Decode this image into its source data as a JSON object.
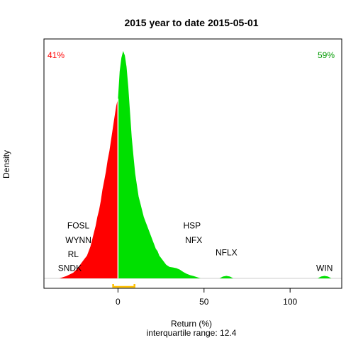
{
  "chart_data": {
    "type": "area",
    "title": "2015  year to date 2015-05-01",
    "xlabel": "Return (%)",
    "ylabel": "Density",
    "subtitle": "interquartile range: 12.4",
    "xlim": [
      -43,
      130
    ],
    "ylim": [
      0,
      1
    ],
    "x_ticks": [
      0,
      50,
      100
    ],
    "x_tick_labels": [
      "0",
      "50",
      "100"
    ],
    "pct_negative": "41%",
    "pct_positive": "59%",
    "colors": {
      "negative": "#ff0000",
      "positive": "#00e000",
      "iqr": "#ffc000",
      "text_negative": "#ff0000",
      "text_positive": "#009a00"
    },
    "interquartile_range": 12.4,
    "iqr_bounds": [
      -2.8,
      9.6
    ],
    "density": [
      [
        -34,
        0.0
      ],
      [
        -30,
        0.01
      ],
      [
        -26,
        0.025
      ],
      [
        -24,
        0.04
      ],
      [
        -22,
        0.06
      ],
      [
        -20,
        0.08
      ],
      [
        -18,
        0.1
      ],
      [
        -17,
        0.12
      ],
      [
        -16,
        0.14
      ],
      [
        -15,
        0.17
      ],
      [
        -14,
        0.2
      ],
      [
        -13,
        0.23
      ],
      [
        -12,
        0.27
      ],
      [
        -11,
        0.3
      ],
      [
        -10,
        0.34
      ],
      [
        -9,
        0.39
      ],
      [
        -8,
        0.43
      ],
      [
        -7,
        0.47
      ],
      [
        -6,
        0.52
      ],
      [
        -5,
        0.56
      ],
      [
        -4,
        0.61
      ],
      [
        -3,
        0.66
      ],
      [
        -2,
        0.71
      ],
      [
        -1,
        0.76
      ],
      [
        0,
        0.79
      ],
      [
        1,
        0.91
      ],
      [
        2,
        0.97
      ],
      [
        3,
        1.0
      ],
      [
        4,
        0.98
      ],
      [
        5,
        0.93
      ],
      [
        6,
        0.84
      ],
      [
        7,
        0.73
      ],
      [
        8,
        0.62
      ],
      [
        9,
        0.54
      ],
      [
        10,
        0.46
      ],
      [
        11,
        0.41
      ],
      [
        12,
        0.36
      ],
      [
        13,
        0.33
      ],
      [
        14,
        0.3
      ],
      [
        15,
        0.27
      ],
      [
        16,
        0.25
      ],
      [
        17,
        0.23
      ],
      [
        18,
        0.21
      ],
      [
        19,
        0.19
      ],
      [
        20,
        0.17
      ],
      [
        21,
        0.15
      ],
      [
        22,
        0.13
      ],
      [
        23,
        0.12
      ],
      [
        24,
        0.1
      ],
      [
        26,
        0.08
      ],
      [
        28,
        0.06
      ],
      [
        30,
        0.05
      ],
      [
        32,
        0.048
      ],
      [
        34,
        0.045
      ],
      [
        36,
        0.038
      ],
      [
        38,
        0.028
      ],
      [
        40,
        0.02
      ],
      [
        42,
        0.014
      ],
      [
        44,
        0.01
      ],
      [
        46,
        0.005
      ],
      [
        48,
        0.0
      ],
      [
        59,
        0.0
      ],
      [
        61,
        0.008
      ],
      [
        63,
        0.011
      ],
      [
        65,
        0.008
      ],
      [
        67,
        0.0
      ],
      [
        116,
        0.0
      ],
      [
        118,
        0.008
      ],
      [
        120,
        0.011
      ],
      [
        122,
        0.008
      ],
      [
        124,
        0.0
      ]
    ],
    "annotations": [
      {
        "text": "FOSL",
        "x": -23,
        "y": 0.219
      },
      {
        "text": "WYNN",
        "x": -23,
        "y": 0.156
      },
      {
        "text": "RL",
        "x": -26,
        "y": 0.093
      },
      {
        "text": "SNDK",
        "x": -28,
        "y": 0.033
      },
      {
        "text": "HSP",
        "x": 43,
        "y": 0.219
      },
      {
        "text": "NFX",
        "x": 44,
        "y": 0.156
      },
      {
        "text": "NFLX",
        "x": 63,
        "y": 0.101
      },
      {
        "text": "WIN",
        "x": 120,
        "y": 0.033
      }
    ]
  }
}
